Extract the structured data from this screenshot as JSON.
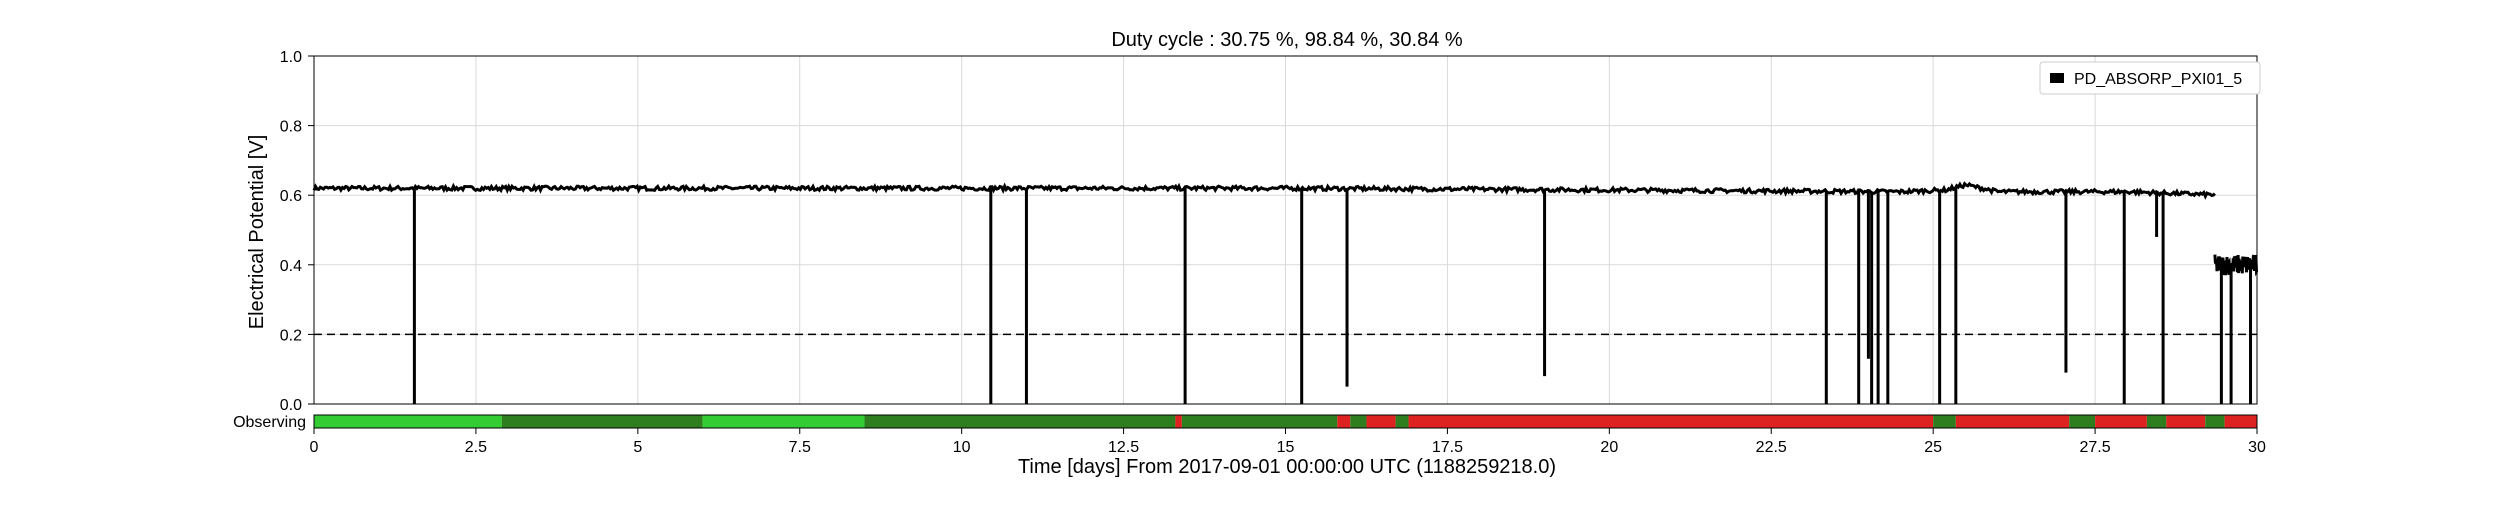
{
  "chart_data": {
    "type": "line",
    "title": "Duty cycle : 30.75 %, 98.84 %, 30.84 %",
    "xlabel": "Time [days] From 2017-09-01 00:00:00 UTC (1188259218.0)",
    "ylabel": "Electrical Potential [V]",
    "xlim": [
      0,
      30
    ],
    "ylim": [
      0,
      1.0
    ],
    "x_ticks": [
      "0",
      "2.5",
      "5",
      "7.5",
      "10",
      "12.5",
      "15",
      "17.5",
      "20",
      "22.5",
      "25",
      "27.5",
      "30"
    ],
    "y_ticks": [
      "0.0",
      "0.2",
      "0.4",
      "0.6",
      "0.8",
      "1.0"
    ],
    "grid": true,
    "legend_position": "top-right",
    "threshold": {
      "value": 0.2,
      "style": "dashed",
      "color": "#000000"
    },
    "series": [
      {
        "name": "PD_ABSORP_PXI01_5",
        "color": "#000000",
        "baseline": [
          [
            0,
            0.62
          ],
          [
            5,
            0.62
          ],
          [
            10,
            0.62
          ],
          [
            15,
            0.62
          ],
          [
            20,
            0.615
          ],
          [
            24.5,
            0.61
          ],
          [
            25.2,
            0.615
          ],
          [
            25.5,
            0.63
          ],
          [
            26,
            0.61
          ],
          [
            28,
            0.61
          ],
          [
            29.5,
            0.6
          ],
          [
            30,
            0.6
          ]
        ],
        "dips_to_zero_days": [
          1.55,
          10.45,
          11.0,
          13.45,
          15.25,
          23.35,
          23.85,
          24.05,
          24.15,
          24.3,
          25.1,
          25.35,
          27.95,
          28.55,
          29.45,
          29.6,
          29.9
        ],
        "partial_dips": [
          [
            15.95,
            0.05
          ],
          [
            19.0,
            0.08
          ],
          [
            27.05,
            0.09
          ],
          [
            28.45,
            0.48
          ],
          [
            24.0,
            0.13
          ]
        ],
        "end_segment": {
          "x_start": 29.35,
          "x_end": 30.0,
          "level": 0.4
        }
      }
    ],
    "state_bar": {
      "label": "Observing",
      "colors": {
        "on": "#2e7d1f",
        "on_light": "#33cc33",
        "off": "#dd2222"
      },
      "segments": [
        [
          0,
          2.9,
          "on_light"
        ],
        [
          2.9,
          6.0,
          "on"
        ],
        [
          6.0,
          8.5,
          "on_light"
        ],
        [
          8.5,
          13.3,
          "on"
        ],
        [
          13.3,
          13.4,
          "off"
        ],
        [
          13.4,
          15.8,
          "on"
        ],
        [
          15.8,
          16.0,
          "off"
        ],
        [
          16.0,
          16.25,
          "on"
        ],
        [
          16.25,
          16.7,
          "off"
        ],
        [
          16.7,
          16.9,
          "on"
        ],
        [
          16.9,
          25.0,
          "off"
        ],
        [
          25.0,
          25.35,
          "on"
        ],
        [
          25.35,
          27.1,
          "off"
        ],
        [
          27.1,
          27.5,
          "on"
        ],
        [
          27.5,
          28.3,
          "off"
        ],
        [
          28.3,
          28.6,
          "on"
        ],
        [
          28.6,
          29.2,
          "off"
        ],
        [
          29.2,
          29.5,
          "on"
        ],
        [
          29.5,
          30.0,
          "off"
        ]
      ]
    }
  }
}
